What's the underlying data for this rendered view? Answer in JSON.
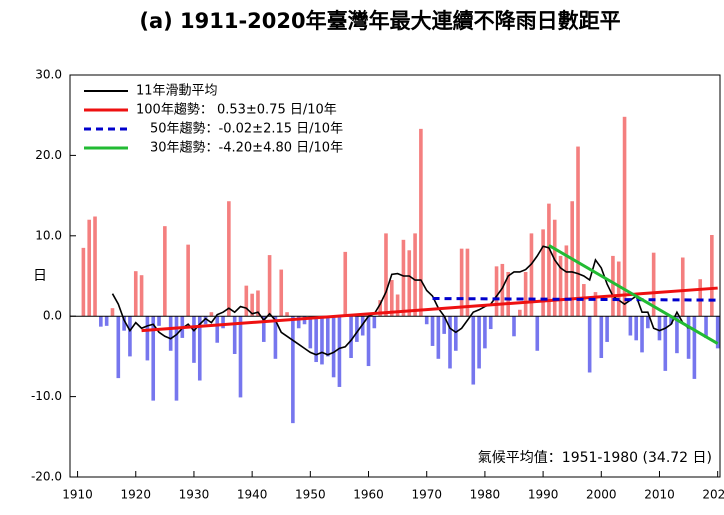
{
  "chart_data": {
    "type": "bar",
    "title": "(a) 1911-2020年臺灣年最大連續不降雨日數距平",
    "ylabel": "日",
    "annotation": "氣候平均值：1951-1980 (34.72 日)",
    "positive_color": "#f47f7f",
    "negative_color": "#7676ee",
    "xlim": [
      1908.7,
      2020.4
    ],
    "ylim": [
      -20,
      30
    ],
    "xticks": [
      1910,
      1920,
      1930,
      1940,
      1950,
      1960,
      1970,
      1980,
      1990,
      2000,
      2010,
      2020
    ],
    "yticks": [
      {
        "value": -20,
        "label": "-20.0"
      },
      {
        "value": -10,
        "label": "-10.0"
      },
      {
        "value": 0,
        "label": "0.0"
      },
      {
        "value": 10,
        "label": "10.0"
      },
      {
        "value": 20,
        "label": "20.0"
      },
      {
        "value": 30,
        "label": "30.0"
      }
    ],
    "x": [
      1911,
      1912,
      1913,
      1914,
      1915,
      1916,
      1917,
      1918,
      1919,
      1920,
      1921,
      1922,
      1923,
      1924,
      1925,
      1926,
      1927,
      1928,
      1929,
      1930,
      1931,
      1932,
      1933,
      1934,
      1935,
      1936,
      1937,
      1938,
      1939,
      1940,
      1941,
      1942,
      1943,
      1944,
      1945,
      1946,
      1947,
      1948,
      1949,
      1950,
      1951,
      1952,
      1953,
      1954,
      1955,
      1956,
      1957,
      1958,
      1959,
      1960,
      1961,
      1962,
      1963,
      1964,
      1965,
      1966,
      1967,
      1968,
      1969,
      1970,
      1971,
      1972,
      1973,
      1974,
      1975,
      1976,
      1977,
      1978,
      1979,
      1980,
      1981,
      1982,
      1983,
      1984,
      1985,
      1986,
      1987,
      1988,
      1989,
      1990,
      1991,
      1992,
      1993,
      1994,
      1995,
      1996,
      1997,
      1998,
      1999,
      2000,
      2001,
      2002,
      2003,
      2004,
      2005,
      2006,
      2007,
      2008,
      2009,
      2010,
      2011,
      2012,
      2013,
      2014,
      2015,
      2016,
      2017,
      2018,
      2019,
      2020
    ],
    "values": [
      8.5,
      12.0,
      12.4,
      -1.3,
      -1.2,
      1.0,
      -7.7,
      -1.8,
      -5.0,
      5.6,
      5.1,
      -5.5,
      -10.5,
      -1.2,
      11.2,
      -4.3,
      -10.5,
      -2.7,
      8.9,
      -5.8,
      -8.0,
      -1.0,
      0.5,
      -3.3,
      -1.5,
      14.3,
      -4.7,
      -10.1,
      3.8,
      2.8,
      3.2,
      -3.2,
      7.6,
      -5.3,
      5.8,
      0.5,
      -13.3,
      -1.5,
      -1.0,
      -4.0,
      -5.7,
      -6.0,
      -5.0,
      -7.6,
      -8.8,
      8.0,
      -5.2,
      -3.2,
      -2.4,
      -6.2,
      -1.5,
      2.0,
      10.3,
      4.5,
      2.7,
      9.5,
      8.2,
      10.3,
      23.3,
      -1.0,
      -3.7,
      -5.3,
      -2.2,
      -6.5,
      -4.3,
      8.4,
      8.4,
      -8.5,
      -6.5,
      -4.0,
      -1.6,
      6.2,
      6.5,
      5.5,
      -2.5,
      0.8,
      5.5,
      10.3,
      -4.3,
      10.8,
      14.0,
      12.0,
      7.5,
      8.8,
      14.3,
      21.1,
      4.0,
      -7.0,
      3.0,
      -5.2,
      -3.2,
      7.5,
      6.8,
      24.8,
      -2.4,
      -3.0,
      -4.5,
      -1.5,
      7.9,
      -3.0,
      -6.8,
      -1.0,
      -4.6,
      7.3,
      -5.3,
      -7.8,
      4.6,
      -2.7,
      10.1,
      -4.0
    ],
    "series": [
      {
        "name": "11年滑動平均",
        "color": "#000000",
        "dash": false,
        "x": [
          1916,
          1917,
          1918,
          1919,
          1920,
          1921,
          1922,
          1923,
          1924,
          1925,
          1926,
          1927,
          1928,
          1929,
          1930,
          1931,
          1932,
          1933,
          1934,
          1935,
          1936,
          1937,
          1938,
          1939,
          1940,
          1941,
          1942,
          1943,
          1944,
          1945,
          1946,
          1947,
          1948,
          1949,
          1950,
          1951,
          1952,
          1953,
          1954,
          1955,
          1956,
          1957,
          1958,
          1959,
          1960,
          1961,
          1962,
          1963,
          1964,
          1965,
          1966,
          1967,
          1968,
          1969,
          1970,
          1971,
          1972,
          1973,
          1974,
          1975,
          1976,
          1977,
          1978,
          1979,
          1980,
          1981,
          1982,
          1983,
          1984,
          1985,
          1986,
          1987,
          1988,
          1989,
          1990,
          1991,
          1992,
          1993,
          1994,
          1995,
          1996,
          1997,
          1998,
          1999,
          2000,
          2001,
          2002,
          2003,
          2004,
          2005,
          2006,
          2007,
          2008,
          2009,
          2010,
          2011,
          2012,
          2013,
          2014,
          2015
        ],
        "values": [
          2.8,
          1.5,
          -0.5,
          -1.8,
          -0.8,
          -1.5,
          -1.2,
          -1.0,
          -2.0,
          -2.5,
          -2.8,
          -2.3,
          -1.5,
          -1.0,
          -1.8,
          -1.0,
          -0.3,
          -0.8,
          0.2,
          0.5,
          1.0,
          0.5,
          1.2,
          1.0,
          0.3,
          0.5,
          -0.5,
          0.3,
          -0.5,
          -2.0,
          -2.5,
          -3.0,
          -3.5,
          -4.0,
          -4.5,
          -4.8,
          -4.5,
          -4.8,
          -4.5,
          -4.0,
          -3.8,
          -3.0,
          -2.0,
          -1.0,
          0,
          0.3,
          1.5,
          3.0,
          5.2,
          5.3,
          5.0,
          5.0,
          4.5,
          4.5,
          3.2,
          2.5,
          1.0,
          0,
          -1.5,
          -2.0,
          -1.5,
          -0.5,
          0.5,
          0.8,
          1.2,
          1.5,
          2.5,
          3.5,
          5.0,
          5.5,
          5.5,
          5.8,
          6.5,
          7.5,
          8.7,
          8.5,
          7.0,
          6.0,
          5.5,
          5.5,
          5.3,
          5.0,
          4.5,
          7.0,
          6.0,
          4.0,
          2.5,
          2.0,
          1.5,
          2.0,
          2.5,
          0.5,
          0.5,
          -1.5,
          -1.8,
          -1.5,
          -1.0,
          0.5,
          -0.8,
          -1.5
        ]
      },
      {
        "name": "100年趨勢：  0.53±0.75 日/10年",
        "color": "#ee1111",
        "dash": false,
        "x": [
          1921,
          2020
        ],
        "values": [
          -1.8,
          3.5
        ]
      },
      {
        "name": "50年趨勢：-0.02±2.15 日/10年",
        "color": "#0000cc",
        "dash": true,
        "x": [
          1971,
          2020
        ],
        "values": [
          2.2,
          2.0
        ]
      },
      {
        "name": "30年趨勢：-4.20±4.80 日/10年",
        "color": "#22bb33",
        "dash": false,
        "x": [
          1991,
          2020
        ],
        "values": [
          8.8,
          -3.4
        ]
      }
    ]
  }
}
